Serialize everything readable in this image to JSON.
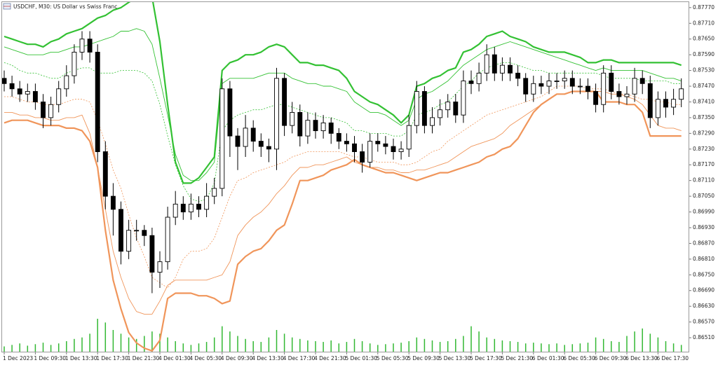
{
  "chart_data": {
    "type": "candlestick",
    "title": "USDCHF, M30:  US Dollar vs Swiss Franc",
    "categories": [
      "1 Dec 2023",
      null,
      null,
      null,
      "1 Dec 09:30",
      null,
      null,
      null,
      "1 Dec 13:30",
      null,
      null,
      null,
      "1 Dec 17:30",
      null,
      null,
      null,
      "1 Dec 21:30",
      null,
      null,
      null,
      "4 Dec 01:30",
      null,
      null,
      null,
      "4 Dec 05:30",
      null,
      null,
      null,
      "4 Dec 09:30",
      null,
      null,
      null,
      "4 Dec 13:30",
      null,
      null,
      null,
      "4 Dec 17:30",
      null,
      null,
      null,
      "4 Dec 21:30",
      null,
      null,
      null,
      "5 Dec 01:30",
      null,
      null,
      null,
      "5 Dec 05:30",
      null,
      null,
      null,
      "5 Dec 09:30",
      null,
      null,
      null,
      "5 Dec 13:30",
      null,
      null,
      null,
      "5 Dec 17:30",
      null,
      null,
      null,
      "5 Dec 21:30",
      null,
      null,
      null,
      "6 Dec 01:30",
      null,
      null,
      null,
      "6 Dec 05:30",
      null,
      null,
      null,
      "6 Dec 09:30",
      null,
      null,
      null,
      "6 Dec 13:30",
      null,
      null,
      null,
      "6 Dec 17:30",
      null,
      null,
      null
    ],
    "open": [
      0.875,
      0.8748,
      0.8746,
      0.8744,
      0.8745,
      0.8741,
      0.8735,
      0.874,
      0.8746,
      0.8751,
      0.876,
      0.8765,
      0.876,
      0.8722,
      0.8705,
      0.87,
      0.8684,
      0.8692,
      0.8692,
      0.869,
      0.8676,
      0.868,
      0.8697,
      0.8702,
      0.8699,
      0.8702,
      0.87,
      0.8705,
      0.8708,
      0.8746,
      0.8728,
      0.8724,
      0.8731,
      0.8726,
      0.8724,
      0.8723,
      0.875,
      0.8732,
      0.8737,
      0.8728,
      0.8734,
      0.873,
      0.8733,
      0.8729,
      0.8726,
      0.8725,
      0.8722,
      0.8718,
      0.8726,
      0.8725,
      0.8724,
      0.8722,
      0.8723,
      0.8732,
      0.8745,
      0.8732,
      0.8735,
      0.8738,
      0.8741,
      0.8736,
      0.8749,
      0.8748,
      0.8752,
      0.8759,
      0.8752,
      0.8755,
      0.8752,
      0.875,
      0.8744,
      0.8748,
      0.8747,
      0.8749,
      0.8749,
      0.875,
      0.8747,
      0.8747,
      0.8745,
      0.874,
      0.8752,
      0.8745,
      0.8743,
      0.8744,
      0.875,
      0.8748,
      0.8735,
      0.8742,
      0.8739,
      0.8742
    ],
    "high": [
      0.8753,
      0.8751,
      0.8749,
      0.8748,
      0.8748,
      0.8744,
      0.8743,
      0.8749,
      0.8755,
      0.8763,
      0.8768,
      0.8768,
      0.8763,
      0.8726,
      0.871,
      0.8703,
      0.8696,
      0.8696,
      0.8694,
      0.8693,
      0.8684,
      0.8701,
      0.8707,
      0.8705,
      0.8706,
      0.8705,
      0.871,
      0.8712,
      0.875,
      0.8749,
      0.8731,
      0.8736,
      0.8734,
      0.8729,
      0.8727,
      0.8754,
      0.8752,
      0.8741,
      0.874,
      0.8737,
      0.8737,
      0.8736,
      0.8735,
      0.8731,
      0.8729,
      0.8728,
      0.8725,
      0.8729,
      0.8729,
      0.8728,
      0.8727,
      0.8726,
      0.8736,
      0.8749,
      0.8747,
      0.8739,
      0.8742,
      0.8744,
      0.8744,
      0.8753,
      0.8753,
      0.8756,
      0.8763,
      0.8762,
      0.8758,
      0.8758,
      0.8755,
      0.8752,
      0.8751,
      0.8751,
      0.8752,
      0.8752,
      0.8753,
      0.8753,
      0.875,
      0.875,
      0.8748,
      0.8755,
      0.8755,
      0.8748,
      0.8747,
      0.8754,
      0.8753,
      0.8751,
      0.8745,
      0.8745,
      0.8746,
      0.875
    ],
    "low": [
      0.8745,
      0.8743,
      0.8741,
      0.8741,
      0.8738,
      0.8731,
      0.8732,
      0.8737,
      0.8743,
      0.8748,
      0.8757,
      0.8756,
      0.8718,
      0.87,
      0.869,
      0.8679,
      0.8681,
      0.8688,
      0.8686,
      0.8668,
      0.867,
      0.8677,
      0.8694,
      0.8696,
      0.8696,
      0.8697,
      0.8697,
      0.8702,
      0.8705,
      0.872,
      0.8715,
      0.872,
      0.8722,
      0.872,
      0.8718,
      0.8715,
      0.8728,
      0.8729,
      0.8724,
      0.8725,
      0.8727,
      0.8727,
      0.8725,
      0.8723,
      0.8722,
      0.8718,
      0.8714,
      0.8716,
      0.8722,
      0.8721,
      0.8719,
      0.8719,
      0.872,
      0.8729,
      0.8729,
      0.8729,
      0.8732,
      0.8735,
      0.8733,
      0.8733,
      0.8744,
      0.8745,
      0.8749,
      0.8749,
      0.8749,
      0.8749,
      0.8747,
      0.8741,
      0.8741,
      0.8744,
      0.8744,
      0.8746,
      0.8746,
      0.8744,
      0.8744,
      0.8742,
      0.8737,
      0.8737,
      0.8742,
      0.874,
      0.874,
      0.8741,
      0.8744,
      0.8731,
      0.8732,
      0.8735,
      0.8736,
      0.8739
    ],
    "close": [
      0.8748,
      0.8746,
      0.8744,
      0.8745,
      0.8741,
      0.8735,
      0.874,
      0.8746,
      0.8751,
      0.876,
      0.8765,
      0.876,
      0.8722,
      0.8705,
      0.87,
      0.8684,
      0.8692,
      0.8692,
      0.869,
      0.8676,
      0.868,
      0.8697,
      0.8702,
      0.8699,
      0.8702,
      0.87,
      0.8705,
      0.8708,
      0.8746,
      0.8728,
      0.8724,
      0.8731,
      0.8726,
      0.8724,
      0.8723,
      0.875,
      0.8732,
      0.8737,
      0.8728,
      0.8734,
      0.873,
      0.8733,
      0.8729,
      0.8726,
      0.8725,
      0.8722,
      0.8718,
      0.8726,
      0.8725,
      0.8724,
      0.8722,
      0.8723,
      0.8732,
      0.8745,
      0.8732,
      0.8735,
      0.8738,
      0.8741,
      0.8736,
      0.8749,
      0.8748,
      0.8752,
      0.8759,
      0.8752,
      0.8755,
      0.8752,
      0.875,
      0.8744,
      0.8748,
      0.8747,
      0.8749,
      0.8749,
      0.875,
      0.8747,
      0.8747,
      0.8745,
      0.874,
      0.8752,
      0.8745,
      0.8743,
      0.8744,
      0.875,
      0.8748,
      0.8735,
      0.8742,
      0.8739,
      0.8742,
      0.8746
    ],
    "candle_color": "#000000",
    "bands": [
      {
        "color": "#33c133",
        "style": "thick",
        "values": [
          0.8766,
          0.8765,
          0.8764,
          0.8763,
          0.8763,
          0.8762,
          0.8764,
          0.8765,
          0.8767,
          0.8768,
          0.8769,
          0.8771,
          0.8773,
          0.8774,
          0.8776,
          0.8777,
          0.8779,
          0.8781,
          0.8783,
          0.8781,
          0.8764,
          0.874,
          0.8718,
          0.871,
          0.871,
          0.8712,
          0.8716,
          0.872,
          0.8753,
          0.8756,
          0.8757,
          0.8759,
          0.8759,
          0.876,
          0.8762,
          0.8763,
          0.8762,
          0.8759,
          0.8756,
          0.8756,
          0.8755,
          0.8755,
          0.8754,
          0.8753,
          0.875,
          0.8745,
          0.8743,
          0.8741,
          0.874,
          0.8738,
          0.8736,
          0.8733,
          0.8736,
          0.8747,
          0.8748,
          0.875,
          0.8751,
          0.8753,
          0.8754,
          0.876,
          0.8761,
          0.8763,
          0.8766,
          0.8767,
          0.8768,
          0.8766,
          0.8765,
          0.8764,
          0.8762,
          0.8761,
          0.876,
          0.876,
          0.876,
          0.8759,
          0.8758,
          0.8756,
          0.8756,
          0.8757,
          0.8757,
          0.8756,
          0.8756,
          0.8756,
          0.8756,
          0.8756,
          0.8756,
          0.8756,
          0.8756,
          0.8755
        ]
      },
      {
        "color": "#33c133",
        "style": "thin",
        "values": [
          0.8762,
          0.8761,
          0.876,
          0.8759,
          0.8759,
          0.8759,
          0.876,
          0.876,
          0.8761,
          0.8762,
          0.8762,
          0.8763,
          0.8764,
          0.8765,
          0.8766,
          0.8768,
          0.8768,
          0.8769,
          0.8768,
          0.8763,
          0.875,
          0.8736,
          0.8721,
          0.8713,
          0.8711,
          0.8711,
          0.8714,
          0.8718,
          0.8748,
          0.875,
          0.875,
          0.875,
          0.875,
          0.8751,
          0.8752,
          0.8752,
          0.8752,
          0.875,
          0.8749,
          0.8748,
          0.8748,
          0.8747,
          0.8747,
          0.8746,
          0.8745,
          0.8741,
          0.8739,
          0.8737,
          0.8737,
          0.8736,
          0.8734,
          0.8732,
          0.8734,
          0.8742,
          0.8744,
          0.8745,
          0.8747,
          0.8749,
          0.8752,
          0.8755,
          0.8757,
          0.8759,
          0.8761,
          0.8762,
          0.8763,
          0.8764,
          0.8763,
          0.8762,
          0.8761,
          0.876,
          0.8759,
          0.8758,
          0.8757,
          0.8756,
          0.8755,
          0.8754,
          0.8753,
          0.8754,
          0.8753,
          0.8753,
          0.8753,
          0.8753,
          0.8753,
          0.8752,
          0.8751,
          0.875,
          0.875,
          0.8749
        ]
      },
      {
        "color": "#33c133",
        "style": "dotted",
        "values": [
          0.8756,
          0.8755,
          0.8753,
          0.8752,
          0.8752,
          0.8751,
          0.875,
          0.875,
          0.8752,
          0.8753,
          0.8754,
          0.8754,
          0.8752,
          0.8752,
          0.8752,
          0.8753,
          0.8753,
          0.8753,
          0.8752,
          0.8749,
          0.874,
          0.8728,
          0.8717,
          0.8709,
          0.8704,
          0.8703,
          0.8704,
          0.871,
          0.873,
          0.8734,
          0.8736,
          0.8737,
          0.8738,
          0.8738,
          0.8739,
          0.874,
          0.874,
          0.8739,
          0.8738,
          0.8737,
          0.8736,
          0.8735,
          0.8735,
          0.8734,
          0.8733,
          0.873,
          0.873,
          0.8729,
          0.8729,
          0.8729,
          0.8728,
          0.8728,
          0.873,
          0.8736,
          0.8737,
          0.8738,
          0.874,
          0.8741,
          0.8744,
          0.8747,
          0.8749,
          0.8752,
          0.8754,
          0.8755,
          0.8756,
          0.8756,
          0.8755,
          0.8754,
          0.8753,
          0.8753,
          0.8752,
          0.8752,
          0.8752,
          0.8752,
          0.8752,
          0.8752,
          0.8752,
          0.8751,
          0.875,
          0.875,
          0.875,
          0.875,
          0.8749,
          0.8749,
          0.8749,
          0.8749,
          0.8748,
          0.8748
        ]
      },
      {
        "color": "#f0955a",
        "style": "dotted",
        "values": [
          0.8743,
          0.8743,
          0.8742,
          0.8741,
          0.8741,
          0.874,
          0.874,
          0.874,
          0.8741,
          0.8742,
          0.8742,
          0.8741,
          0.8734,
          0.8725,
          0.8715,
          0.8708,
          0.8698,
          0.8689,
          0.8682,
          0.8674,
          0.8672,
          0.867,
          0.8674,
          0.8681,
          0.8684,
          0.8684,
          0.8685,
          0.8689,
          0.8697,
          0.8705,
          0.8711,
          0.8712,
          0.8714,
          0.8715,
          0.8716,
          0.8717,
          0.8718,
          0.872,
          0.8721,
          0.8722,
          0.8722,
          0.8722,
          0.8722,
          0.8722,
          0.8721,
          0.872,
          0.872,
          0.8719,
          0.8718,
          0.8718,
          0.8718,
          0.8717,
          0.8717,
          0.8718,
          0.872,
          0.8722,
          0.8723,
          0.8726,
          0.8728,
          0.873,
          0.8732,
          0.8734,
          0.8736,
          0.8737,
          0.8738,
          0.8739,
          0.874,
          0.8741,
          0.8742,
          0.8743,
          0.8745,
          0.8747,
          0.8747,
          0.8747,
          0.8747,
          0.8746,
          0.8746,
          0.8746,
          0.8745,
          0.8744,
          0.8744,
          0.8743,
          0.8742,
          0.8742,
          0.8741,
          0.8741,
          0.874,
          0.874
        ]
      },
      {
        "color": "#f0955a",
        "style": "thin",
        "values": [
          0.8737,
          0.8737,
          0.8736,
          0.8736,
          0.8735,
          0.8735,
          0.8734,
          0.8734,
          0.8735,
          0.8735,
          0.8736,
          0.8729,
          0.8716,
          0.87,
          0.8684,
          0.8674,
          0.8666,
          0.8661,
          0.866,
          0.866,
          0.8665,
          0.8671,
          0.8673,
          0.8673,
          0.8673,
          0.8673,
          0.8673,
          0.8674,
          0.8675,
          0.868,
          0.869,
          0.8694,
          0.8697,
          0.8699,
          0.8702,
          0.8706,
          0.8709,
          0.8713,
          0.8716,
          0.8716,
          0.8717,
          0.8717,
          0.8718,
          0.8719,
          0.872,
          0.8718,
          0.8717,
          0.8716,
          0.8716,
          0.8715,
          0.8715,
          0.8714,
          0.8714,
          0.8715,
          0.8715,
          0.8716,
          0.8717,
          0.8718,
          0.872,
          0.8722,
          0.8724,
          0.8725,
          0.8726,
          0.8727,
          0.8729,
          0.8732,
          0.8734,
          0.8736,
          0.8738,
          0.874,
          0.8742,
          0.8744,
          0.8744,
          0.8745,
          0.8745,
          0.8745,
          0.8745,
          0.8745,
          0.8744,
          0.8744,
          0.8743,
          0.8742,
          0.874,
          0.8736,
          0.8732,
          0.8731,
          0.8731,
          0.873
        ]
      },
      {
        "color": "#f0955a",
        "style": "thick",
        "values": [
          0.8733,
          0.8734,
          0.8734,
          0.8734,
          0.8733,
          0.8732,
          0.8732,
          0.8732,
          0.8731,
          0.8731,
          0.873,
          0.8726,
          0.8716,
          0.8692,
          0.8673,
          0.8662,
          0.8653,
          0.8649,
          0.8647,
          0.8646,
          0.865,
          0.8666,
          0.8668,
          0.8668,
          0.8668,
          0.8667,
          0.8667,
          0.8666,
          0.8664,
          0.8665,
          0.8679,
          0.8682,
          0.8684,
          0.8685,
          0.8688,
          0.8692,
          0.8694,
          0.8702,
          0.8711,
          0.8711,
          0.8712,
          0.8713,
          0.8715,
          0.8716,
          0.8717,
          0.8719,
          0.8717,
          0.8716,
          0.8715,
          0.8714,
          0.8714,
          0.8713,
          0.8712,
          0.8711,
          0.8712,
          0.8713,
          0.8714,
          0.8714,
          0.8715,
          0.8716,
          0.8717,
          0.8718,
          0.872,
          0.8721,
          0.8723,
          0.8724,
          0.8727,
          0.8732,
          0.8737,
          0.874,
          0.8742,
          0.8744,
          0.8744,
          0.8745,
          0.8745,
          0.8745,
          0.8745,
          0.8741,
          0.8741,
          0.8741,
          0.874,
          0.874,
          0.8737,
          0.8728,
          0.8728,
          0.8728,
          0.8728,
          0.8728
        ]
      }
    ],
    "volumes": {
      "color": "#33b833",
      "values": [
        8,
        10,
        12,
        9,
        11,
        13,
        10,
        12,
        15,
        18,
        20,
        25,
        45,
        40,
        30,
        25,
        20,
        18,
        22,
        28,
        25,
        20,
        15,
        12,
        10,
        12,
        14,
        20,
        35,
        28,
        22,
        18,
        15,
        14,
        20,
        30,
        25,
        20,
        18,
        16,
        15,
        14,
        16,
        12,
        14,
        18,
        15,
        12,
        10,
        11,
        12,
        13,
        15,
        20,
        18,
        16,
        14,
        15,
        18,
        22,
        35,
        28,
        20,
        18,
        16,
        15,
        14,
        12,
        13,
        12,
        11,
        12,
        10,
        11,
        12,
        13,
        20,
        18,
        15,
        14,
        22,
        28,
        32,
        25,
        20,
        15,
        12,
        10
      ]
    },
    "ylim": [
      0.86454,
      0.87791
    ],
    "yticks": [
      {
        "value": 0.8777,
        "label": "0.87770"
      },
      {
        "value": 0.8771,
        "label": "0.87710"
      },
      {
        "value": 0.8765,
        "label": "0.87650"
      },
      {
        "value": 0.8759,
        "label": "0.87590"
      },
      {
        "value": 0.8753,
        "label": "0.87530"
      },
      {
        "value": 0.8747,
        "label": "0.87470"
      },
      {
        "value": 0.8741,
        "label": "0.87410"
      },
      {
        "value": 0.8735,
        "label": "0.87350"
      },
      {
        "value": 0.8729,
        "label": "0.87290"
      },
      {
        "value": 0.8723,
        "label": "0.87230"
      },
      {
        "value": 0.8717,
        "label": "0.87170"
      },
      {
        "value": 0.8711,
        "label": "0.87110"
      },
      {
        "value": 0.8705,
        "label": "0.87050"
      },
      {
        "value": 0.8699,
        "label": "0.86990"
      },
      {
        "value": 0.8693,
        "label": "0.86930"
      },
      {
        "value": 0.8687,
        "label": "0.86870"
      },
      {
        "value": 0.8681,
        "label": "0.86810"
      },
      {
        "value": 0.8675,
        "label": "0.86750"
      },
      {
        "value": 0.8669,
        "label": "0.86690"
      },
      {
        "value": 0.8663,
        "label": "0.86630"
      },
      {
        "value": 0.8657,
        "label": "0.86570"
      },
      {
        "value": 0.8651,
        "label": "0.86510"
      }
    ],
    "grid": false
  }
}
